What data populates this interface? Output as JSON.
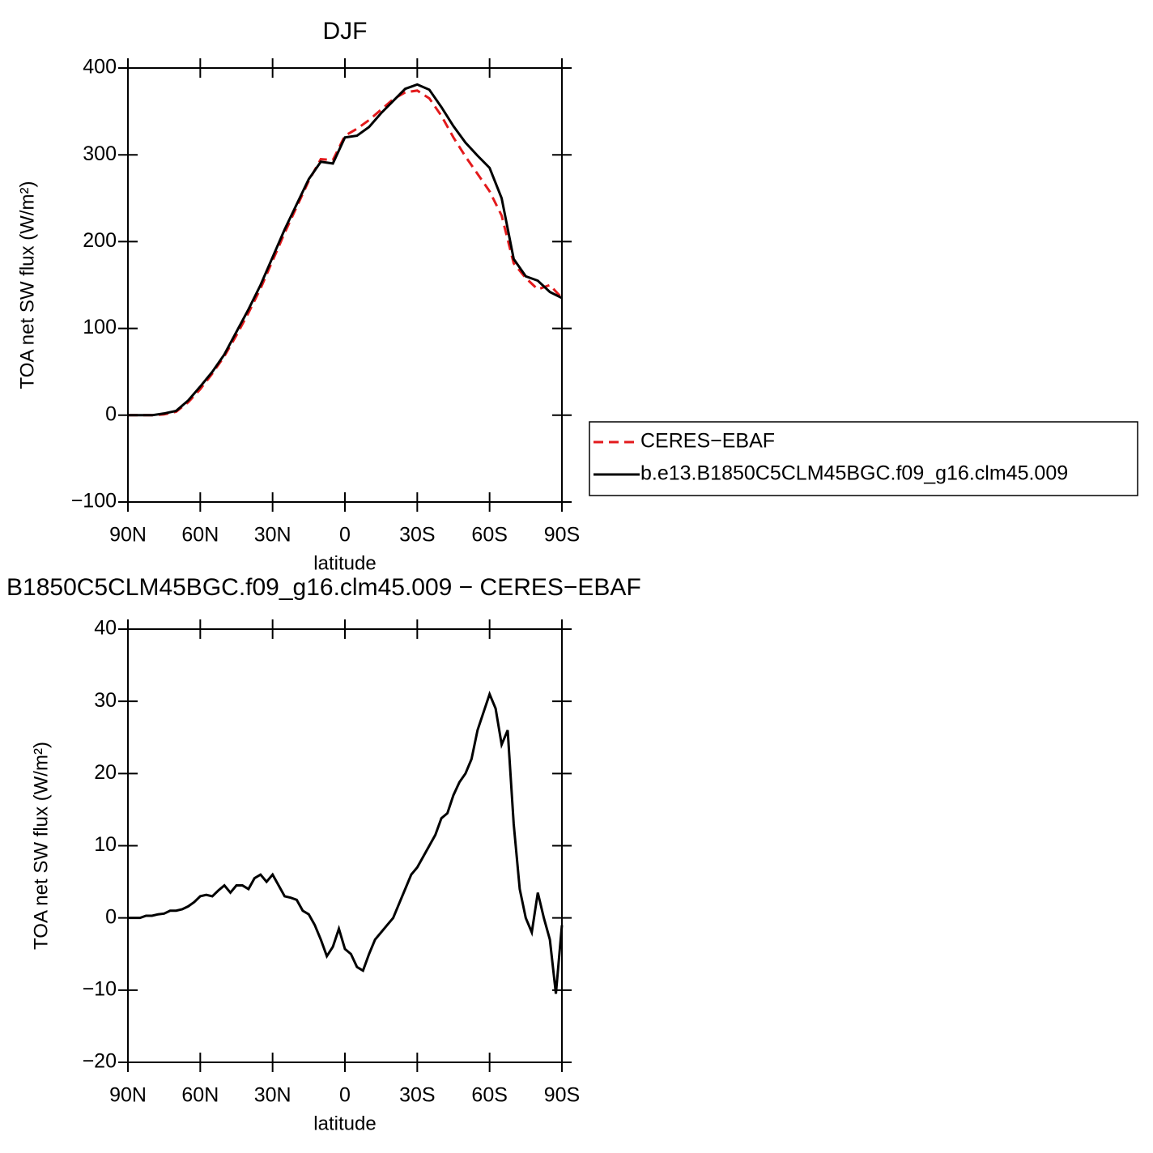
{
  "chart_data": [
    {
      "type": "line",
      "title": "DJF",
      "xlabel": "latitude",
      "ylabel": "TOA net SW flux (W/m²)",
      "x": [
        90,
        85,
        80,
        75,
        70,
        65,
        60,
        55,
        50,
        45,
        40,
        35,
        30,
        25,
        20,
        15,
        10,
        5,
        0,
        -5,
        -10,
        -15,
        -20,
        -25,
        -30,
        -35,
        -40,
        -45,
        -50,
        -55,
        -60,
        -65,
        -70,
        -75,
        -80,
        -85,
        -90
      ],
      "series": [
        {
          "name": "CERES−EBAF",
          "color": "#e31a1c",
          "dash": true,
          "values": [
            0,
            0,
            0,
            1,
            4,
            15,
            30,
            48,
            68,
            92,
            118,
            146,
            178,
            210,
            240,
            270,
            295,
            294,
            322,
            330,
            340,
            352,
            364,
            372,
            374,
            365,
            345,
            320,
            298,
            278,
            258,
            230,
            175,
            158,
            145,
            150,
            135
          ]
        },
        {
          "name": "b.e13.B1850C5CLM45BGC.f09_g16.clm45.009",
          "color": "#000000",
          "dash": false,
          "values": [
            0,
            0,
            0,
            2,
            5,
            17,
            33,
            50,
            70,
            96,
            122,
            150,
            182,
            214,
            243,
            272,
            292,
            290,
            320,
            322,
            332,
            348,
            362,
            376,
            381,
            375,
            355,
            333,
            314,
            299,
            285,
            250,
            180,
            160,
            155,
            142,
            135
          ]
        }
      ],
      "xlim": [
        90,
        -90
      ],
      "xticks": [
        {
          "value": 90,
          "label": "90N"
        },
        {
          "value": 60,
          "label": "60N"
        },
        {
          "value": 30,
          "label": "30N"
        },
        0,
        {
          "value": -30,
          "label": "30S"
        },
        {
          "value": -60,
          "label": "60S"
        },
        {
          "value": -90,
          "label": "90S"
        }
      ],
      "ylim": [
        -100,
        400
      ],
      "yticks": [
        {
          "value": -100,
          "label": "−100"
        },
        0,
        100,
        200,
        300,
        400
      ],
      "legend": "right"
    },
    {
      "type": "line",
      "title": "B1850C5CLM45BGC.f09_g16.clm45.009 − CERES−EBAF",
      "xlabel": "latitude",
      "ylabel": "TOA net SW flux (W/m²)",
      "x": [
        90,
        87.5,
        85,
        82.5,
        80,
        77.5,
        75,
        72.5,
        70,
        67.5,
        65,
        62.5,
        60,
        57.5,
        55,
        52.5,
        50,
        47.5,
        45,
        42.5,
        40,
        37.5,
        35,
        32.5,
        30,
        27.5,
        25,
        22.5,
        20,
        17.5,
        15,
        12.5,
        10,
        7.5,
        5,
        2.5,
        0,
        -2.5,
        -5,
        -7.5,
        -10,
        -12.5,
        -15,
        -17.5,
        -20,
        -22.5,
        -25,
        -27.5,
        -30,
        -32.5,
        -35,
        -37.5,
        -40,
        -42.5,
        -45,
        -47.5,
        -50,
        -52.5,
        -55,
        -57.5,
        -60,
        -62.5,
        -65,
        -67.5,
        -70,
        -72.5,
        -75,
        -77.5,
        -80,
        -82.5,
        -85,
        -87.5,
        -90
      ],
      "series": [
        {
          "color": "#000000",
          "dash": false,
          "values": [
            0,
            0,
            0,
            0.3,
            0.3,
            0.5,
            0.6,
            1,
            1,
            1.2,
            1.6,
            2.2,
            3,
            3.2,
            3,
            3.8,
            4.5,
            3.5,
            4.5,
            4.5,
            4,
            5.5,
            6,
            5,
            6,
            4.5,
            3,
            2.8,
            2.5,
            1,
            0.5,
            -1,
            -3,
            -5.3,
            -4,
            -1.5,
            -4.3,
            -5,
            -6.8,
            -7.3,
            -5,
            -3,
            -2,
            -1,
            0,
            2,
            4,
            6,
            7,
            8.5,
            10,
            11.5,
            13.8,
            14.5,
            17,
            18.8,
            20,
            22,
            26,
            28.5,
            31,
            29,
            24,
            26,
            13,
            4,
            0,
            -2,
            3.5,
            0,
            -3,
            -10.5,
            -1
          ]
        }
      ],
      "xlim": [
        90,
        -90
      ],
      "xticks": [
        {
          "value": 90,
          "label": "90N"
        },
        {
          "value": 60,
          "label": "60N"
        },
        {
          "value": 30,
          "label": "30N"
        },
        0,
        {
          "value": -30,
          "label": "30S"
        },
        {
          "value": -60,
          "label": "60S"
        },
        {
          "value": -90,
          "label": "90S"
        }
      ],
      "ylim": [
        -20,
        40
      ],
      "yticks": [
        {
          "value": -20,
          "label": "−20"
        },
        {
          "value": -10,
          "label": "−10"
        },
        0,
        10,
        20,
        30,
        40
      ]
    }
  ]
}
